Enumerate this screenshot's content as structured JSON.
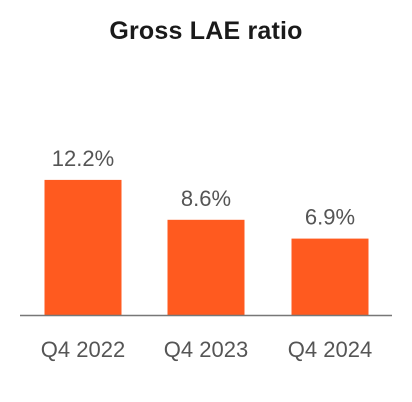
{
  "chart_data": {
    "type": "bar",
    "title": "Gross LAE ratio",
    "categories": [
      "Q4 2022",
      "Q4 2023",
      "Q4 2024"
    ],
    "values": [
      12.2,
      8.6,
      6.9
    ],
    "value_labels": [
      "12.2%",
      "8.6%",
      "6.9%"
    ],
    "unit": "%",
    "xlabel": "",
    "ylabel": "",
    "ylim": [
      0,
      16
    ],
    "grid": false,
    "legend": "none",
    "bar_color": "#FF5A1F",
    "axis_color": "#777777"
  }
}
